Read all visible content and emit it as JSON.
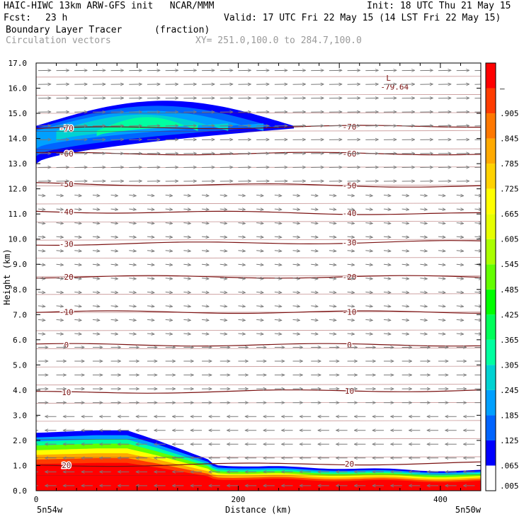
{
  "header": {
    "title_left": "HAIC-HIWC 13km ARW-GFS init   NCAR/MMM",
    "init": "Init: 18 UTC Thu 21 May 15",
    "fcst_label": "Fcst:",
    "fcst_value": "23 h",
    "valid": "Valid: 17 UTC Fri 22 May 15 (14 LST Fri 22 May 15)",
    "field1_name": "Boundary Layer Tracer",
    "field1_units": "(fraction)",
    "field2_name": "Circulation vectors",
    "xsec": "XY= 251.0,100.0 to 284.7,100.0"
  },
  "chart_data": {
    "type": "heatmap",
    "xlabel": "Distance (km)",
    "ylabel": "Height (km)",
    "xlim": [
      0,
      440
    ],
    "ylim": [
      0,
      17
    ],
    "x_ticks": [
      0,
      200,
      400
    ],
    "y_ticks": [
      "0.0",
      "1.0",
      "2.0",
      "3.0",
      "4.0",
      "5.0",
      "6.0",
      "7.0",
      "8.0",
      "9.0",
      "10.0",
      "11.0",
      "12.0",
      "13.0",
      "14.0",
      "15.0",
      "16.0",
      "17.0"
    ],
    "x_end_labels": {
      "left": "5n54w",
      "right": "5n50w"
    },
    "colorbar": {
      "labels": [
        ".005",
        ".065",
        ".125",
        ".185",
        ".245",
        ".305",
        ".365",
        ".425",
        ".485",
        ".545",
        ".605",
        ".665",
        ".725",
        ".785",
        ".845",
        ".905",
        "–"
      ],
      "colors": [
        "#ffffff",
        "#0000ff",
        "#0064ff",
        "#00a0ff",
        "#00d2d2",
        "#00ffa0",
        "#00ff5a",
        "#00ff00",
        "#64ff00",
        "#aaff00",
        "#e6ff00",
        "#ffff00",
        "#ffd200",
        "#ffaa00",
        "#ff7800",
        "#ff3c00",
        "#ff0000"
      ]
    },
    "series": [
      {
        "name": "Boundary Layer Tracer",
        "upper_plume": {
          "x_range": [
            0,
            255
          ],
          "bottom_km": [
            13.0,
            14.4
          ],
          "top_km": [
            14.6,
            15.5
          ],
          "max_fraction": 0.3
        },
        "lower_layer": {
          "x": [
            0,
            60,
            90,
            120,
            140,
            160,
            180,
            220,
            300,
            380,
            440
          ],
          "top_km": [
            2.3,
            2.4,
            2.4,
            2.0,
            1.7,
            1.4,
            1.1,
            1.0,
            0.95,
            0.85,
            0.85
          ]
        }
      }
    ],
    "temperature_contours": [
      {
        "label": "-70",
        "left_km": 14.4,
        "right_km": 14.5
      },
      {
        "label": "-60",
        "left_km": 13.4,
        "right_km": 13.4
      },
      {
        "label": "-50",
        "left_km": 12.2,
        "right_km": 12.1
      },
      {
        "label": "-40",
        "left_km": 11.1,
        "right_km": 11.0
      },
      {
        "label": "-30",
        "left_km": 9.8,
        "right_km": 9.9
      },
      {
        "label": "-20",
        "left_km": 8.5,
        "right_km": 8.5
      },
      {
        "label": "-10",
        "left_km": 7.1,
        "right_km": 7.1
      },
      {
        "label": "0",
        "left_km": 5.8,
        "right_km": 5.8
      },
      {
        "label": "10",
        "left_km": 3.9,
        "right_km": 4.0
      },
      {
        "label": "20",
        "left_km": 1.0,
        "right_km": 1.1
      }
    ],
    "annotation": {
      "text_l": "L",
      "text_val": "-79.64",
      "x": 345,
      "y_km": 16.0
    },
    "grid": false
  }
}
